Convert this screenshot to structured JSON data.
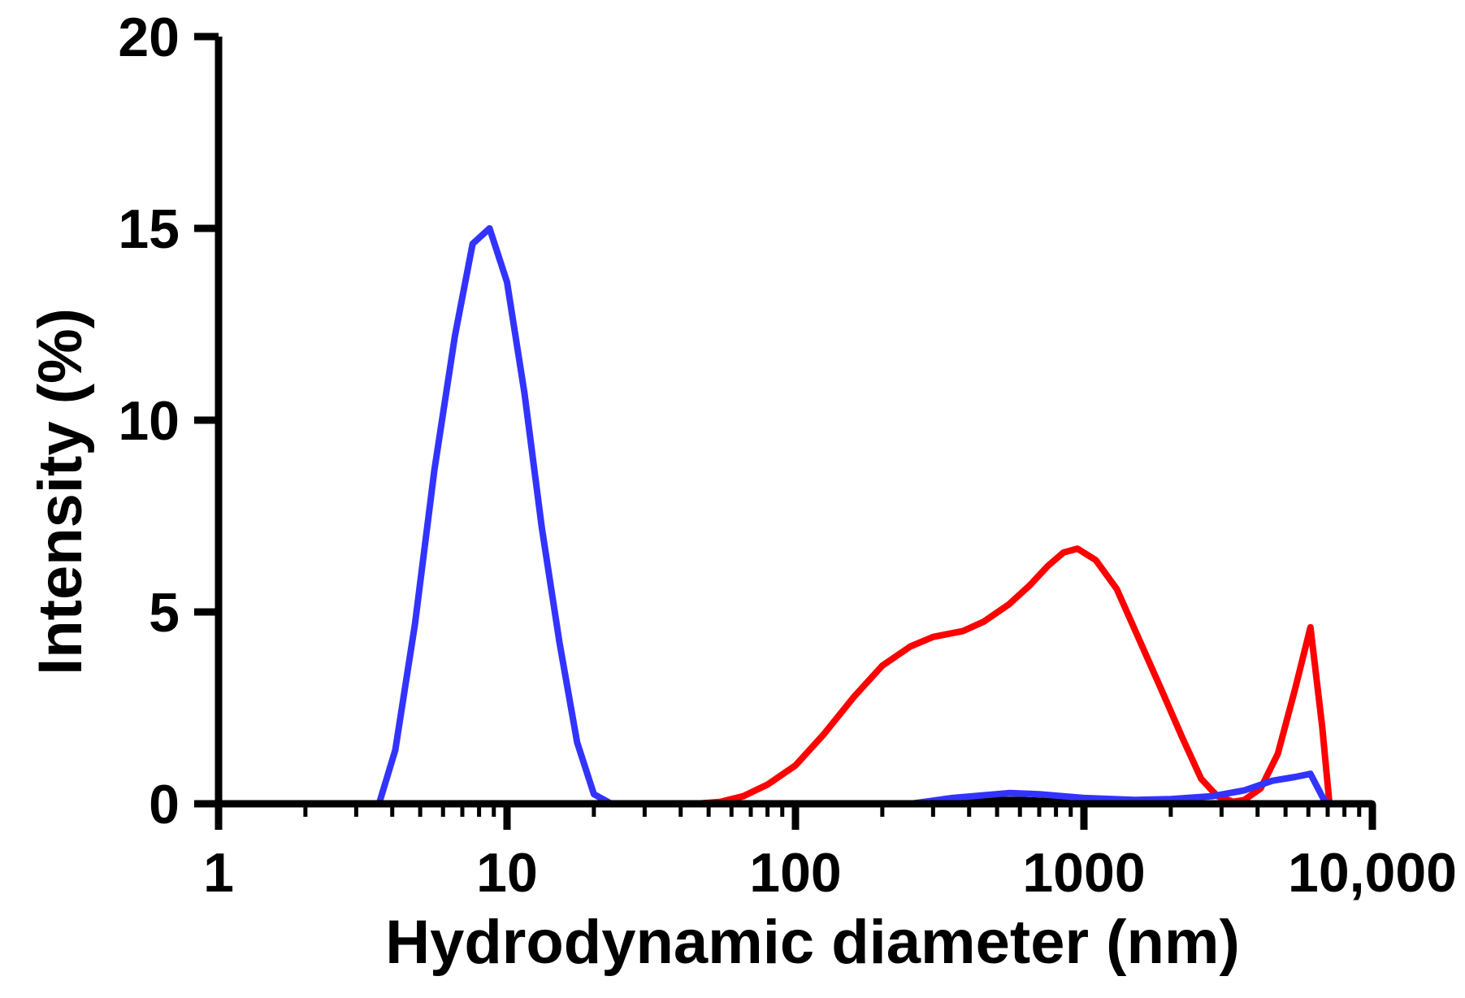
{
  "chart_data": {
    "type": "line",
    "title": "",
    "xlabel": "Hydrodynamic diameter (nm)",
    "ylabel": "Intensity (%)",
    "x_scale": "log",
    "xlim": [
      1,
      10000
    ],
    "ylim": [
      0,
      20
    ],
    "x_ticks": [
      {
        "value": 1,
        "label": "1"
      },
      {
        "value": 10,
        "label": "10"
      },
      {
        "value": 100,
        "label": "100"
      },
      {
        "value": 1000,
        "label": "1000"
      },
      {
        "value": 10000,
        "label": "10,000"
      }
    ],
    "y_ticks": [
      {
        "value": 0,
        "label": "0"
      },
      {
        "value": 5,
        "label": "5"
      },
      {
        "value": 10,
        "label": "10"
      },
      {
        "value": 15,
        "label": "15"
      },
      {
        "value": 20,
        "label": "20"
      }
    ],
    "grid": false,
    "legend": "none",
    "series": [
      {
        "color": "#ff0000",
        "points": [
          [
            1,
            0
          ],
          [
            3.6,
            0
          ],
          [
            10,
            0
          ],
          [
            20,
            0
          ],
          [
            45,
            0
          ],
          [
            55,
            0.05
          ],
          [
            66,
            0.2
          ],
          [
            80,
            0.5
          ],
          [
            100,
            1.0
          ],
          [
            125,
            1.8
          ],
          [
            160,
            2.8
          ],
          [
            200,
            3.6
          ],
          [
            250,
            4.1
          ],
          [
            300,
            4.35
          ],
          [
            380,
            4.5
          ],
          [
            450,
            4.75
          ],
          [
            550,
            5.2
          ],
          [
            650,
            5.7
          ],
          [
            750,
            6.2
          ],
          [
            850,
            6.55
          ],
          [
            950,
            6.65
          ],
          [
            1100,
            6.35
          ],
          [
            1300,
            5.6
          ],
          [
            1550,
            4.3
          ],
          [
            1850,
            3.0
          ],
          [
            2200,
            1.7
          ],
          [
            2550,
            0.65
          ],
          [
            2900,
            0.2
          ],
          [
            3300,
            0.05
          ],
          [
            3600,
            0.1
          ],
          [
            4100,
            0.4
          ],
          [
            4700,
            1.3
          ],
          [
            5400,
            3.0
          ],
          [
            6100,
            4.6
          ],
          [
            6700,
            2.0
          ],
          [
            7100,
            0
          ],
          [
            10000,
            0
          ]
        ]
      },
      {
        "color": "#000000",
        "points": [
          [
            1,
            0
          ],
          [
            250,
            0
          ],
          [
            350,
            0.06
          ],
          [
            450,
            0.1
          ],
          [
            600,
            0.1
          ],
          [
            800,
            0.06
          ],
          [
            1000,
            0
          ],
          [
            10000,
            0
          ]
        ]
      },
      {
        "color": "#3333ff",
        "points": [
          [
            1,
            0
          ],
          [
            3.6,
            0
          ],
          [
            4.1,
            1.4
          ],
          [
            4.8,
            4.7
          ],
          [
            5.6,
            8.7
          ],
          [
            6.6,
            12.2
          ],
          [
            7.6,
            14.6
          ],
          [
            8.7,
            15.0
          ],
          [
            10,
            13.6
          ],
          [
            11.5,
            10.7
          ],
          [
            13.2,
            7.2
          ],
          [
            15.2,
            4.2
          ],
          [
            17.5,
            1.6
          ],
          [
            20,
            0.25
          ],
          [
            23,
            0
          ],
          [
            50,
            0
          ],
          [
            100,
            0
          ],
          [
            250,
            0
          ],
          [
            350,
            0.15
          ],
          [
            550,
            0.28
          ],
          [
            700,
            0.25
          ],
          [
            1000,
            0.15
          ],
          [
            1500,
            0.1
          ],
          [
            2000,
            0.12
          ],
          [
            2800,
            0.2
          ],
          [
            3600,
            0.35
          ],
          [
            4500,
            0.6
          ],
          [
            5400,
            0.7
          ],
          [
            6100,
            0.78
          ],
          [
            6800,
            0.1
          ],
          [
            7200,
            0
          ],
          [
            7600,
            0
          ]
        ]
      }
    ]
  }
}
